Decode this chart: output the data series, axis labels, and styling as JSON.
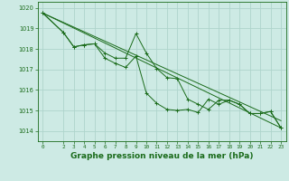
{
  "bg_color": "#cdeae4",
  "grid_color": "#aed4cc",
  "line_color": "#1a6b1a",
  "xlabel": "Graphe pression niveau de la mer (hPa)",
  "xlabel_fontsize": 6.5,
  "ylim": [
    1013.5,
    1020.3
  ],
  "xlim": [
    -0.5,
    23.5
  ],
  "yticks": [
    1014,
    1015,
    1016,
    1017,
    1018,
    1019,
    1020
  ],
  "xticks": [
    0,
    2,
    3,
    4,
    5,
    6,
    7,
    8,
    9,
    10,
    11,
    12,
    13,
    14,
    15,
    16,
    17,
    18,
    19,
    20,
    21,
    22,
    23
  ],
  "line_main_x": [
    0,
    2,
    3,
    4,
    5,
    6,
    7,
    8,
    9,
    10,
    11,
    12,
    13,
    14,
    15,
    16,
    17,
    18,
    19,
    20,
    21,
    22,
    23
  ],
  "line_main_y": [
    1019.75,
    1018.8,
    1018.1,
    1018.2,
    1018.25,
    1017.8,
    1017.55,
    1017.55,
    1018.75,
    1017.8,
    1017.05,
    1016.6,
    1016.55,
    1015.55,
    1015.3,
    1015.05,
    1015.5,
    1015.5,
    1015.3,
    1014.85,
    1014.85,
    1014.95,
    1014.15
  ],
  "line_lower_x": [
    0,
    2,
    3,
    4,
    5,
    6,
    7,
    8,
    9,
    10,
    11,
    12,
    13,
    14,
    15,
    16,
    17,
    18,
    19,
    20,
    21,
    22,
    23
  ],
  "line_lower_y": [
    1019.75,
    1018.8,
    1018.1,
    1018.2,
    1018.25,
    1017.55,
    1017.3,
    1017.1,
    1017.65,
    1015.85,
    1015.35,
    1015.05,
    1015.0,
    1015.05,
    1014.9,
    1015.55,
    1015.3,
    1015.5,
    1015.3,
    1014.85,
    1014.85,
    1014.95,
    1014.15
  ],
  "trend1_x": [
    0,
    23
  ],
  "trend1_y": [
    1019.75,
    1014.15
  ],
  "trend2_x": [
    0,
    23
  ],
  "trend2_y": [
    1019.75,
    1014.5
  ]
}
